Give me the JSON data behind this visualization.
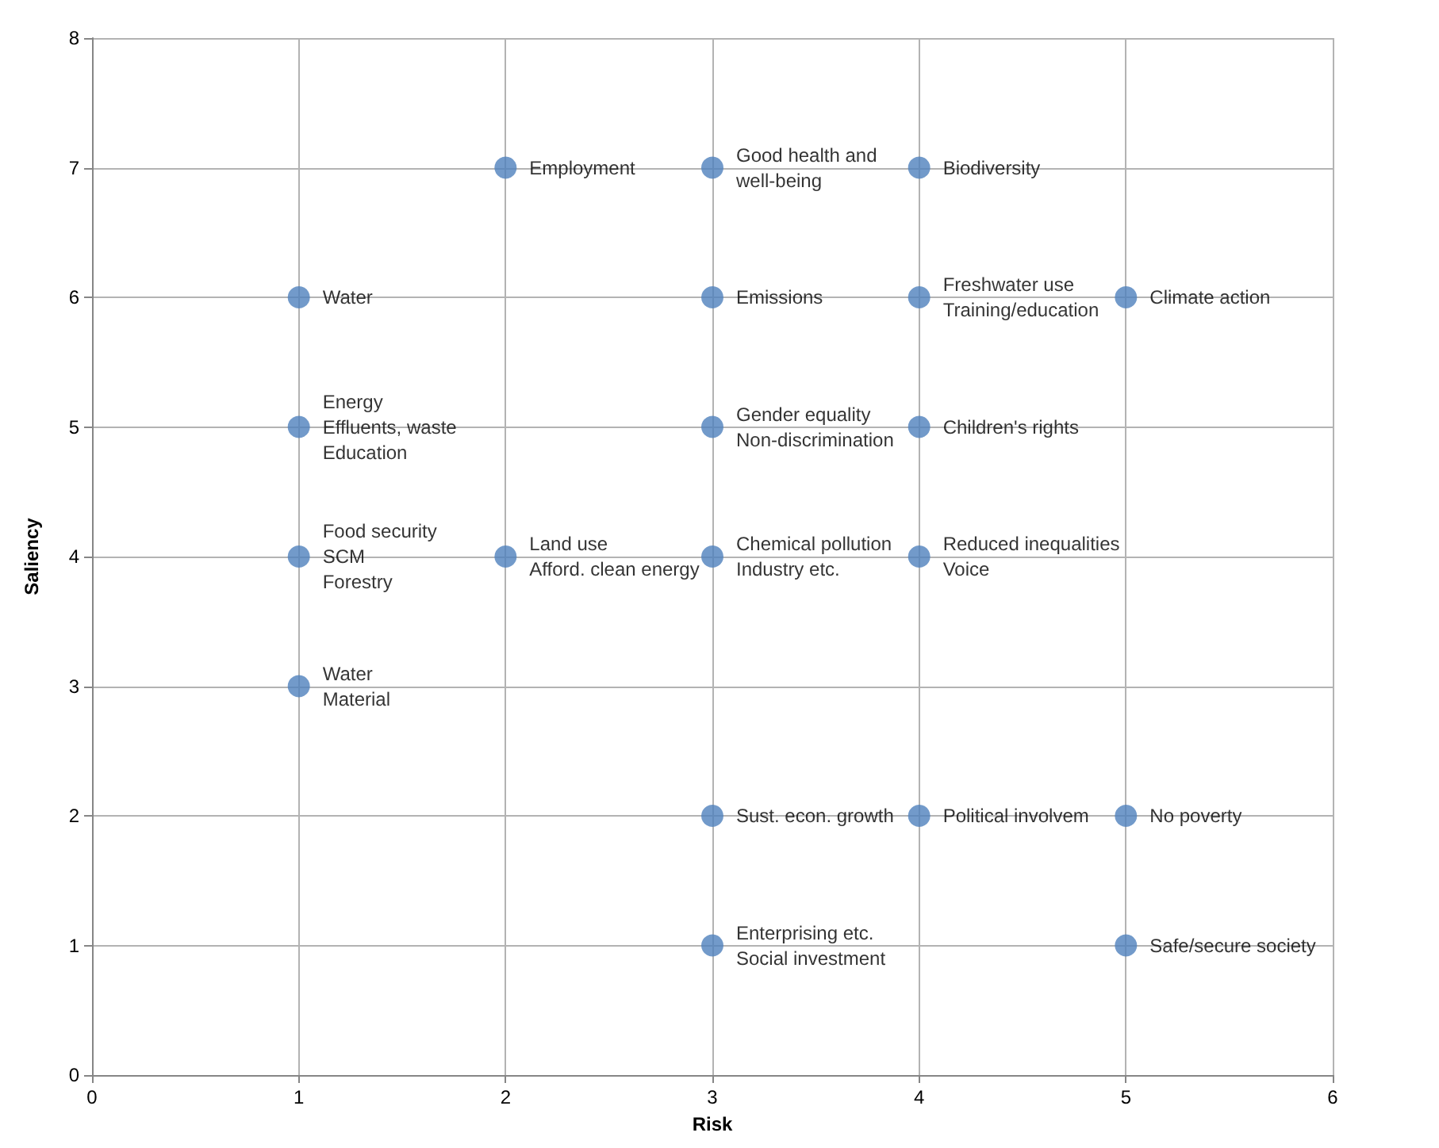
{
  "chart_data": {
    "type": "scatter",
    "xlabel": "Risk",
    "ylabel": "Saliency",
    "x": [
      2,
      3,
      4,
      1,
      3,
      4,
      5,
      1,
      3,
      4,
      1,
      2,
      3,
      4,
      1,
      3,
      4,
      5,
      3,
      5
    ],
    "series": [
      {
        "color": "#4f81bd",
        "values": [
          7,
          7,
          7,
          6,
          6,
          6,
          6,
          5,
          5,
          5,
          4,
          4,
          4,
          4,
          3,
          2,
          2,
          2,
          1,
          1
        ]
      }
    ],
    "xlim": [
      0,
      6
    ],
    "xticks": [
      0,
      1,
      2,
      3,
      4,
      5,
      6
    ],
    "ylim": [
      0,
      8
    ],
    "yticks": [
      0,
      1,
      2,
      3,
      4,
      5,
      6,
      7,
      8
    ],
    "grid": true,
    "marker": "circle",
    "annotations": [
      {
        "text": "Employment",
        "x": 2,
        "y": 7
      },
      {
        "text": "Good health and\nwell-being",
        "x": 3,
        "y": 7
      },
      {
        "text": "Biodiversity",
        "x": 4,
        "y": 7
      },
      {
        "text": "Water",
        "x": 1,
        "y": 6
      },
      {
        "text": "Emissions",
        "x": 3,
        "y": 6
      },
      {
        "text": "Freshwater use\nTraining/education",
        "x": 4,
        "y": 6
      },
      {
        "text": "Climate action",
        "x": 5,
        "y": 6
      },
      {
        "text": "Energy\nEffluents, waste\nEducation",
        "x": 1,
        "y": 5
      },
      {
        "text": "Gender equality\nNon-discrimination",
        "x": 3,
        "y": 5
      },
      {
        "text": "Children's rights",
        "x": 4,
        "y": 5
      },
      {
        "text": "Food security\nSCM\nForestry",
        "x": 1,
        "y": 4
      },
      {
        "text": "Land use\nAfford. clean energy",
        "x": 2,
        "y": 4
      },
      {
        "text": "Chemical pollution\nIndustry etc.",
        "x": 3,
        "y": 4
      },
      {
        "text": "Reduced inequalities\nVoice",
        "x": 4,
        "y": 4
      },
      {
        "text": "Water\nMaterial",
        "x": 1,
        "y": 3
      },
      {
        "text": "Sust. econ. growth",
        "x": 3,
        "y": 2
      },
      {
        "text": "Political involvem",
        "x": 4,
        "y": 2
      },
      {
        "text": "No poverty",
        "x": 5,
        "y": 2
      },
      {
        "text": "Enterprising etc.\nSocial investment",
        "x": 3,
        "y": 1
      },
      {
        "text": "Safe/secure society",
        "x": 5,
        "y": 1
      }
    ]
  }
}
